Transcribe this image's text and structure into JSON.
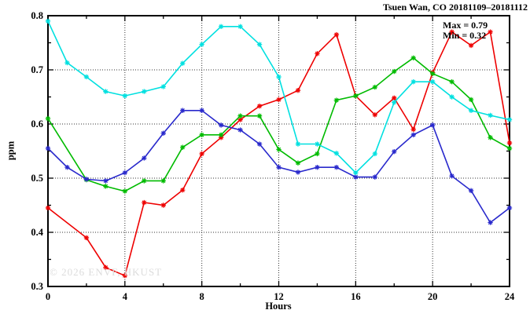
{
  "header": {
    "title": "Tsuen Wan, CO 20181109–20181112"
  },
  "annotations": {
    "max_label": "Max = 0.79",
    "min_label": "Min = 0.32",
    "watermark": "© 2026 ENVF, HKUST"
  },
  "chart_data": {
    "type": "line",
    "title": "Tsuen Wan, CO 20181109–20181112",
    "xlabel": "Hours",
    "ylabel": "ppm",
    "xlim": [
      0,
      24
    ],
    "ylim": [
      0.3,
      0.8
    ],
    "xticks": [
      0,
      4,
      8,
      12,
      16,
      20,
      24
    ],
    "yticks": [
      0.3,
      0.4,
      0.5,
      0.6,
      0.7,
      0.8
    ],
    "x_minor_step": 2,
    "y_minor_step": 0.05,
    "grid": true,
    "legend_position": "none",
    "marker": "asterisk",
    "x": [
      0,
      1,
      2,
      3,
      4,
      5,
      6,
      7,
      8,
      9,
      10,
      11,
      12,
      13,
      14,
      15,
      16,
      17,
      18,
      19,
      20,
      21,
      22,
      23,
      24
    ],
    "series": [
      {
        "name": "red",
        "color": "#ee0000",
        "values": [
          0.445,
          null,
          0.39,
          0.335,
          0.32,
          0.455,
          0.45,
          0.478,
          0.545,
          0.575,
          0.608,
          0.633,
          0.645,
          0.662,
          0.73,
          0.765,
          0.652,
          0.617,
          0.648,
          0.59,
          0.695,
          0.77,
          0.745,
          0.77,
          0.565
        ]
      },
      {
        "name": "green",
        "color": "#00bb00",
        "values": [
          0.61,
          null,
          0.497,
          0.485,
          0.476,
          0.495,
          0.495,
          0.557,
          0.58,
          0.58,
          0.615,
          0.615,
          0.553,
          0.528,
          0.545,
          0.644,
          0.652,
          0.668,
          0.697,
          0.722,
          0.693,
          0.678,
          0.645,
          0.575,
          0.555
        ]
      },
      {
        "name": "blue",
        "color": "#2929cc",
        "values": [
          0.555,
          0.52,
          0.498,
          0.495,
          0.51,
          0.537,
          0.583,
          0.625,
          0.625,
          0.598,
          0.589,
          0.563,
          0.52,
          0.511,
          0.52,
          0.52,
          0.502,
          0.502,
          0.549,
          0.58,
          0.598,
          0.504,
          0.477,
          0.418,
          0.445
        ]
      },
      {
        "name": "cyan",
        "color": "#00e0e0",
        "values": [
          0.79,
          0.713,
          0.687,
          0.66,
          0.652,
          0.66,
          0.669,
          0.712,
          0.747,
          0.78,
          0.78,
          0.747,
          0.687,
          0.563,
          0.563,
          0.546,
          0.51,
          0.545,
          0.64,
          0.678,
          0.678,
          0.65,
          0.625,
          0.616,
          0.608
        ]
      }
    ]
  }
}
